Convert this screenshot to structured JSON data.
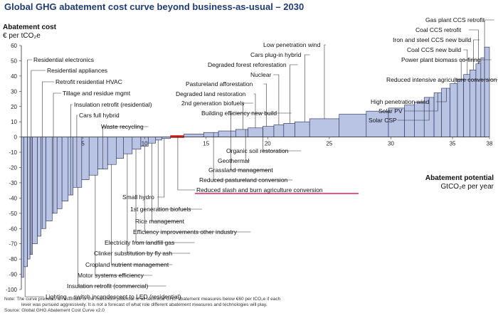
{
  "header": {
    "title": "Global GHG abatement cost curve beyond business-as-usual – 2030",
    "y_label_line1": "Abatement cost",
    "y_label_line2": "€ per tCO₂e",
    "x_label_line1": "Abatement potential",
    "x_label_line2": "GtCO₂e per year"
  },
  "footer": {
    "note_line1": "Note: The curve presents an estimate of the maximum potential of all technical GHG abatement measures below €60 per tCO₂e if each",
    "note_line2": "lever was pursued aggressively. It is not a forecast of what role different abatement measures and technologies will play.",
    "source": "Source: Global GHG Abatement Cost Curve v2.0"
  },
  "colors": {
    "bar_fill": "#b9c3e4",
    "bar_stroke": "#1f2a55",
    "highlight": "#e0201b",
    "underline": "#e0206a",
    "title": "#1f3b73"
  },
  "chart_data": {
    "type": "bar",
    "variable_width": true,
    "ylim": [
      -100,
      60
    ],
    "xlim": [
      0,
      38
    ],
    "yticks": [
      60,
      50,
      40,
      30,
      20,
      10,
      0,
      -10,
      -20,
      -30,
      -40,
      -50,
      -60,
      -70,
      -80,
      -90,
      -100
    ],
    "xticks": [
      5,
      10,
      15,
      20,
      25,
      30,
      35,
      38
    ],
    "grid": false,
    "bars": [
      {
        "x0": 0.0,
        "x1": 0.2,
        "y": -92
      },
      {
        "x0": 0.2,
        "x1": 0.5,
        "y": -85
      },
      {
        "x0": 0.5,
        "x1": 0.7,
        "y": -80
      },
      {
        "x0": 0.7,
        "x1": 0.9,
        "y": -77
      },
      {
        "x0": 0.9,
        "x1": 1.3,
        "y": -70
      },
      {
        "x0": 1.3,
        "x1": 1.6,
        "y": -65
      },
      {
        "x0": 1.6,
        "x1": 2.0,
        "y": -60
      },
      {
        "x0": 2.0,
        "x1": 2.5,
        "y": -55
      },
      {
        "x0": 2.5,
        "x1": 2.9,
        "y": -50
      },
      {
        "x0": 2.9,
        "x1": 3.3,
        "y": -47
      },
      {
        "x0": 3.3,
        "x1": 3.8,
        "y": -42
      },
      {
        "x0": 3.8,
        "x1": 4.2,
        "y": -38
      },
      {
        "x0": 4.2,
        "x1": 4.9,
        "y": -33
      },
      {
        "x0": 4.9,
        "x1": 5.5,
        "y": -28
      },
      {
        "x0": 5.5,
        "x1": 6.2,
        "y": -25
      },
      {
        "x0": 6.2,
        "x1": 7.0,
        "y": -21
      },
      {
        "x0": 7.0,
        "x1": 7.7,
        "y": -18
      },
      {
        "x0": 7.7,
        "x1": 8.3,
        "y": -14
      },
      {
        "x0": 8.3,
        "x1": 9.0,
        "y": -11
      },
      {
        "x0": 9.0,
        "x1": 9.7,
        "y": -8
      },
      {
        "x0": 9.7,
        "x1": 10.3,
        "y": -6
      },
      {
        "x0": 10.3,
        "x1": 10.9,
        "y": -4
      },
      {
        "x0": 10.9,
        "x1": 11.4,
        "y": -2
      },
      {
        "x0": 11.4,
        "x1": 12.1,
        "y": -1
      },
      {
        "x0": 12.1,
        "x1": 13.2,
        "y": 1,
        "highlight": true
      },
      {
        "x0": 13.2,
        "x1": 14.8,
        "y": 2
      },
      {
        "x0": 14.8,
        "x1": 16.0,
        "y": 3
      },
      {
        "x0": 16.0,
        "x1": 17.4,
        "y": 4
      },
      {
        "x0": 17.4,
        "x1": 18.4,
        "y": 5
      },
      {
        "x0": 18.4,
        "x1": 19.6,
        "y": 6
      },
      {
        "x0": 19.6,
        "x1": 20.5,
        "y": 7
      },
      {
        "x0": 20.5,
        "x1": 21.3,
        "y": 8
      },
      {
        "x0": 21.3,
        "x1": 22.2,
        "y": 9
      },
      {
        "x0": 22.2,
        "x1": 23.4,
        "y": 10
      },
      {
        "x0": 23.4,
        "x1": 25.8,
        "y": 12
      },
      {
        "x0": 25.8,
        "x1": 28.0,
        "y": 15
      },
      {
        "x0": 28.0,
        "x1": 29.8,
        "y": 17
      },
      {
        "x0": 29.8,
        "x1": 31.1,
        "y": 19
      },
      {
        "x0": 31.1,
        "x1": 31.9,
        "y": 21
      },
      {
        "x0": 31.9,
        "x1": 32.7,
        "y": 23
      },
      {
        "x0": 32.7,
        "x1": 33.5,
        "y": 26
      },
      {
        "x0": 33.5,
        "x1": 34.1,
        "y": 29
      },
      {
        "x0": 34.1,
        "x1": 34.8,
        "y": 32
      },
      {
        "x0": 34.8,
        "x1": 35.4,
        "y": 35
      },
      {
        "x0": 35.4,
        "x1": 35.9,
        "y": 38
      },
      {
        "x0": 35.9,
        "x1": 36.4,
        "y": 41
      },
      {
        "x0": 36.4,
        "x1": 36.9,
        "y": 44
      },
      {
        "x0": 36.9,
        "x1": 37.3,
        "y": 48
      },
      {
        "x0": 37.3,
        "x1": 37.6,
        "y": 52
      },
      {
        "x0": 37.6,
        "x1": 38.0,
        "y": 59
      }
    ],
    "annotations": [
      {
        "text": "Residential electronics",
        "x": 0.5
      },
      {
        "text": "Residential appliances",
        "x": 0.8
      },
      {
        "text": "Retrofit residential HVAC",
        "x": 1.7
      },
      {
        "text": "Tillage and residue mgmt",
        "x": 2.6
      },
      {
        "text": "Insulation retrofit (residential)",
        "x": 4.0
      },
      {
        "text": "Cars full hybrid",
        "x": 4.5
      },
      {
        "text": "Waste recycling",
        "x": 6.6
      },
      {
        "text": "Low penetration wind",
        "x": 24.6
      },
      {
        "text": "Cars plug-in hybrid",
        "x": 23.0
      },
      {
        "text": "Degraded forest reforestation",
        "x": 21.8
      },
      {
        "text": "Nuclear",
        "x": 20.9
      },
      {
        "text": "Pastureland afforestation",
        "x": 19.9
      },
      {
        "text": "Degraded land restoration",
        "x": 19.0
      },
      {
        "text": "2nd generation biofuels",
        "x": 18.0
      },
      {
        "text": "Building efficiency new build",
        "x": 17.0
      },
      {
        "text": "Organic soil restoration",
        "x": 19.6
      },
      {
        "text": "Geothermal",
        "x": 18.2
      },
      {
        "text": "Grassland management",
        "x": 17.0
      },
      {
        "text": "Reduced pastureland conversion",
        "x": 15.6
      },
      {
        "text": "Reduced slash and burn agriculture conversion",
        "x": 12.7
      },
      {
        "text": "Small hydro",
        "x": 11.6
      },
      {
        "text": "1st generation biofuels",
        "x": 11.1
      },
      {
        "text": "Rice management",
        "x": 10.6
      },
      {
        "text": "Efficiency improvements other industry",
        "x": 10.0
      },
      {
        "text": "Electricity from landfill gas",
        "x": 9.3
      },
      {
        "text": "Clinker substitution by fly ash",
        "x": 8.6
      },
      {
        "text": "Cropland nutrient management",
        "x": 7.3
      },
      {
        "text": "Motor systems efficiency",
        "x": 6.0
      },
      {
        "text": "Insulation retrofit (commercial)",
        "x": 4.6
      },
      {
        "text": "Lighting – switch incandescent to LED (residential)",
        "x": 0.3
      },
      {
        "text": "Gas plant CCS retrofit",
        "x": 37.6
      },
      {
        "text": "Coal CCS retrofit",
        "x": 37.1
      },
      {
        "text": "Iron and steel CCS new build",
        "x": 36.7
      },
      {
        "text": "Coal CCS new build",
        "x": 36.2
      },
      {
        "text": "Power plant biomass co-firing",
        "x": 35.7
      },
      {
        "text": "Reduced intensive agriculture conversion",
        "x": 35.2
      },
      {
        "text": "High penetration wind",
        "x": 34.5
      },
      {
        "text": "Solar PV",
        "x": 33.8
      },
      {
        "text": "Solar CSP",
        "x": 33.1
      }
    ]
  }
}
